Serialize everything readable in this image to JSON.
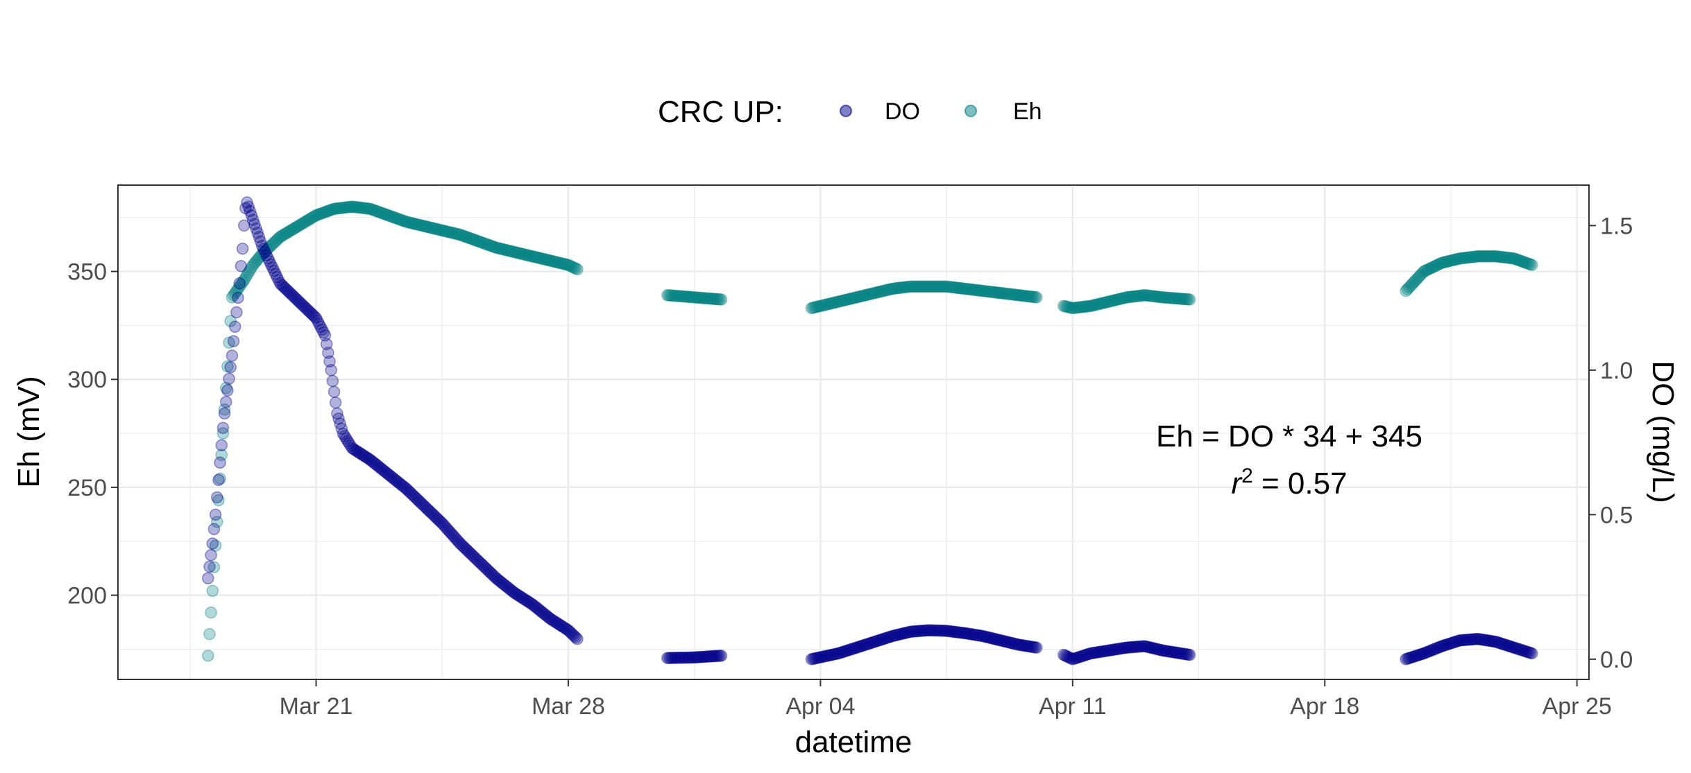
{
  "chart_data": {
    "type": "scatter",
    "xlabel": "datetime",
    "ylabel": "Eh (mV)",
    "ylabel_right": "DO (mg/L)",
    "legend": {
      "title": "CRC UP:",
      "position": "top"
    },
    "x_ticks": [
      "Mar 21",
      "Mar 28",
      "Apr 04",
      "Apr 11",
      "Apr 18",
      "Apr 25"
    ],
    "x_tick_dates": [
      "2024-03-21",
      "2024-03-28",
      "2024-04-04",
      "2024-04-11",
      "2024-04-18",
      "2024-04-25"
    ],
    "xlim": [
      "2024-03-15T12:00",
      "2024-04-25T08:00"
    ],
    "ylim": [
      161,
      390
    ],
    "y_ticks": [
      200,
      250,
      300,
      350
    ],
    "ylim_right": [
      -0.07,
      1.64
    ],
    "y_ticks_right": [
      "0.0",
      "0.5",
      "1.0",
      "1.5"
    ],
    "grid": true,
    "annotation": {
      "equation": "Eh = DO * 34 + 345",
      "r2_prefix": "r",
      "r2_exp": "2",
      "r2_value": " = 0.57"
    },
    "series": [
      {
        "name": "DO",
        "axis": "right",
        "color": "#00008B",
        "segments": [
          [
            [
              "2024-03-18T00:00",
              0.28
            ],
            [
              "2024-03-18T01:00",
              0.32
            ],
            [
              "2024-03-18T02:00",
              0.36
            ],
            [
              "2024-03-18T03:00",
              0.4
            ],
            [
              "2024-03-18T04:00",
              0.45
            ],
            [
              "2024-03-18T05:00",
              0.5
            ],
            [
              "2024-03-18T06:00",
              0.56
            ],
            [
              "2024-03-18T07:00",
              0.62
            ],
            [
              "2024-03-18T08:00",
              0.68
            ],
            [
              "2024-03-18T09:00",
              0.74
            ],
            [
              "2024-03-18T10:00",
              0.8
            ],
            [
              "2024-03-18T11:00",
              0.85
            ],
            [
              "2024-03-18T12:00",
              0.89
            ],
            [
              "2024-03-18T13:00",
              0.93
            ],
            [
              "2024-03-18T14:00",
              0.97
            ],
            [
              "2024-03-18T15:00",
              1.01
            ],
            [
              "2024-03-18T16:00",
              1.05
            ],
            [
              "2024-03-18T17:00",
              1.1
            ],
            [
              "2024-03-18T18:00",
              1.15
            ],
            [
              "2024-03-18T19:00",
              1.2
            ],
            [
              "2024-03-18T20:00",
              1.25
            ],
            [
              "2024-03-18T21:00",
              1.3
            ],
            [
              "2024-03-18T22:00",
              1.36
            ],
            [
              "2024-03-18T23:00",
              1.42
            ],
            [
              "2024-03-19T00:00",
              1.5
            ],
            [
              "2024-03-19T01:00",
              1.56
            ],
            [
              "2024-03-19T02:00",
              1.58
            ],
            [
              "2024-03-19T04:00",
              1.55
            ],
            [
              "2024-03-19T08:00",
              1.49
            ],
            [
              "2024-03-19T12:00",
              1.43
            ],
            [
              "2024-03-20T00:00",
              1.3
            ],
            [
              "2024-03-20T12:00",
              1.24
            ],
            [
              "2024-03-21T00:00",
              1.18
            ],
            [
              "2024-03-21T06:00",
              1.12
            ],
            [
              "2024-03-21T10:00",
              1.0
            ],
            [
              "2024-03-21T14:00",
              0.85
            ],
            [
              "2024-03-21T18:00",
              0.78
            ],
            [
              "2024-03-22T00:00",
              0.73
            ],
            [
              "2024-03-22T12:00",
              0.69
            ],
            [
              "2024-03-23T00:00",
              0.64
            ],
            [
              "2024-03-23T12:00",
              0.59
            ],
            [
              "2024-03-24T00:00",
              0.53
            ],
            [
              "2024-03-24T12:00",
              0.47
            ],
            [
              "2024-03-25T00:00",
              0.4
            ],
            [
              "2024-03-25T12:00",
              0.34
            ],
            [
              "2024-03-26T00:00",
              0.28
            ],
            [
              "2024-03-26T12:00",
              0.23
            ],
            [
              "2024-03-27T00:00",
              0.19
            ],
            [
              "2024-03-27T12:00",
              0.14
            ],
            [
              "2024-03-28T00:00",
              0.1
            ],
            [
              "2024-03-28T06:00",
              0.07
            ]
          ],
          [
            [
              "2024-03-30T18:00",
              0.004
            ],
            [
              "2024-03-31T12:00",
              0.006
            ],
            [
              "2024-04-01T06:00",
              0.012
            ]
          ],
          [
            [
              "2024-04-03T18:00",
              0.0
            ],
            [
              "2024-04-04T12:00",
              0.02
            ],
            [
              "2024-04-05T06:00",
              0.05
            ],
            [
              "2024-04-06T00:00",
              0.08
            ],
            [
              "2024-04-06T12:00",
              0.095
            ],
            [
              "2024-04-07T00:00",
              0.1
            ],
            [
              "2024-04-07T12:00",
              0.098
            ],
            [
              "2024-04-08T00:00",
              0.09
            ],
            [
              "2024-04-08T12:00",
              0.08
            ],
            [
              "2024-04-09T00:00",
              0.065
            ],
            [
              "2024-04-09T12:00",
              0.05
            ],
            [
              "2024-04-10T00:00",
              0.04
            ]
          ],
          [
            [
              "2024-04-10T18:00",
              0.015
            ],
            [
              "2024-04-11T00:00",
              0.0
            ],
            [
              "2024-04-11T12:00",
              0.02
            ],
            [
              "2024-04-12T00:00",
              0.03
            ],
            [
              "2024-04-12T12:00",
              0.04
            ],
            [
              "2024-04-13T00:00",
              0.045
            ],
            [
              "2024-04-13T12:00",
              0.03
            ],
            [
              "2024-04-14T06:00",
              0.015
            ]
          ],
          [
            [
              "2024-04-20T06:00",
              0.0
            ],
            [
              "2024-04-20T18:00",
              0.02
            ],
            [
              "2024-04-21T06:00",
              0.045
            ],
            [
              "2024-04-21T18:00",
              0.065
            ],
            [
              "2024-04-22T06:00",
              0.07
            ],
            [
              "2024-04-22T18:00",
              0.06
            ],
            [
              "2024-04-23T06:00",
              0.04
            ],
            [
              "2024-04-23T18:00",
              0.02
            ]
          ]
        ]
      },
      {
        "name": "Eh",
        "axis": "left",
        "color": "#008080",
        "segments": [
          [
            [
              "2024-03-18T00:00",
              172
            ],
            [
              "2024-03-18T01:00",
              182
            ],
            [
              "2024-03-18T02:00",
              192
            ],
            [
              "2024-03-18T03:00",
              202
            ],
            [
              "2024-03-18T04:00",
              213
            ],
            [
              "2024-03-18T05:00",
              223
            ],
            [
              "2024-03-18T06:00",
              234
            ],
            [
              "2024-03-18T07:00",
              244
            ],
            [
              "2024-03-18T08:00",
              254
            ],
            [
              "2024-03-18T09:00",
              265
            ],
            [
              "2024-03-18T10:00",
              275
            ],
            [
              "2024-03-18T11:00",
              286
            ],
            [
              "2024-03-18T12:00",
              296
            ],
            [
              "2024-03-18T13:00",
              306
            ],
            [
              "2024-03-18T14:00",
              317
            ],
            [
              "2024-03-18T15:00",
              327
            ],
            [
              "2024-03-18T16:00",
              338
            ],
            [
              "2024-03-18T20:00",
              342
            ],
            [
              "2024-03-19T00:00",
              346
            ],
            [
              "2024-03-19T06:00",
              353
            ],
            [
              "2024-03-19T12:00",
              358
            ],
            [
              "2024-03-20T00:00",
              366
            ],
            [
              "2024-03-20T12:00",
              371
            ],
            [
              "2024-03-21T00:00",
              376
            ],
            [
              "2024-03-21T12:00",
              379
            ],
            [
              "2024-03-22T00:00",
              380
            ],
            [
              "2024-03-22T12:00",
              379
            ],
            [
              "2024-03-23T00:00",
              376
            ],
            [
              "2024-03-23T12:00",
              373
            ],
            [
              "2024-03-24T00:00",
              371
            ],
            [
              "2024-03-24T12:00",
              369
            ],
            [
              "2024-03-25T00:00",
              367
            ],
            [
              "2024-03-25T12:00",
              364
            ],
            [
              "2024-03-26T00:00",
              361
            ],
            [
              "2024-03-26T12:00",
              359
            ],
            [
              "2024-03-27T00:00",
              357
            ],
            [
              "2024-03-27T12:00",
              355
            ],
            [
              "2024-03-28T00:00",
              353
            ],
            [
              "2024-03-28T06:00",
              351
            ]
          ],
          [
            [
              "2024-03-30T18:00",
              339
            ],
            [
              "2024-03-31T12:00",
              338
            ],
            [
              "2024-04-01T06:00",
              337
            ]
          ],
          [
            [
              "2024-04-03T18:00",
              333
            ],
            [
              "2024-04-04T12:00",
              336
            ],
            [
              "2024-04-05T06:00",
              339
            ],
            [
              "2024-04-06T00:00",
              342
            ],
            [
              "2024-04-06T12:00",
              343
            ],
            [
              "2024-04-07T00:00",
              343
            ],
            [
              "2024-04-07T12:00",
              343
            ],
            [
              "2024-04-08T00:00",
              342
            ],
            [
              "2024-04-08T12:00",
              341
            ],
            [
              "2024-04-09T00:00",
              340
            ],
            [
              "2024-04-09T12:00",
              339
            ],
            [
              "2024-04-10T00:00",
              338
            ]
          ],
          [
            [
              "2024-04-10T18:00",
              334
            ],
            [
              "2024-04-11T00:00",
              333
            ],
            [
              "2024-04-11T12:00",
              334
            ],
            [
              "2024-04-12T00:00",
              336
            ],
            [
              "2024-04-12T12:00",
              338
            ],
            [
              "2024-04-13T00:00",
              339
            ],
            [
              "2024-04-13T12:00",
              338
            ],
            [
              "2024-04-14T06:00",
              337
            ]
          ],
          [
            [
              "2024-04-20T06:00",
              341
            ],
            [
              "2024-04-20T18:00",
              350
            ],
            [
              "2024-04-21T06:00",
              354
            ],
            [
              "2024-04-21T18:00",
              356
            ],
            [
              "2024-04-22T06:00",
              357
            ],
            [
              "2024-04-22T18:00",
              357
            ],
            [
              "2024-04-23T06:00",
              356
            ],
            [
              "2024-04-23T18:00",
              353
            ]
          ]
        ]
      }
    ]
  }
}
